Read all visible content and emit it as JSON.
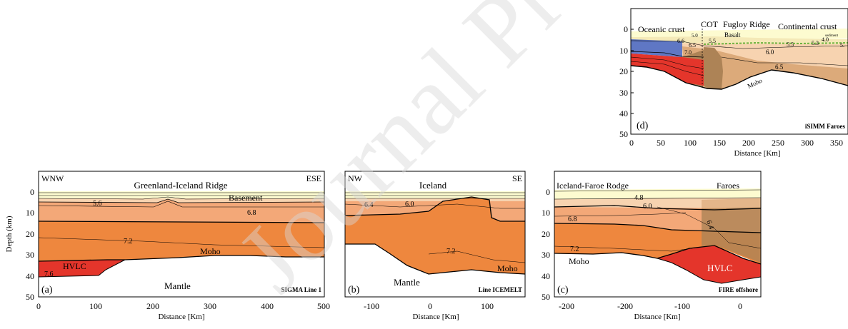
{
  "watermark": "Journal Pre-proof",
  "colors": {
    "cream": "#fdfbd0",
    "sediment": "#f4e9b7",
    "tan_light": "#f7d3b0",
    "salmon": "#f3a878",
    "orange": "#ee873e",
    "red": "#e4352b",
    "brown": "#ad8356",
    "blue": "#5f77c4",
    "watermark": "#dcdcdc",
    "green_line": "#6db33f"
  },
  "panels": [
    {
      "id": "a",
      "ylabel": "Depth (km)",
      "xlabel": "Distance [Km]",
      "xticks": [
        "0",
        "100",
        "200",
        "300",
        "400",
        "500"
      ],
      "yticks": [
        "0",
        "10",
        "20",
        "30",
        "40",
        "50"
      ],
      "corner_left": "WNW",
      "corner_right": "ESE",
      "top_title": "Greenland-Iceland Ridge",
      "labels": {
        "basement": "Basement",
        "v56": "5.6",
        "v68": "6.8",
        "v72": "7.2",
        "moho": "Moho",
        "hvlc": "HVLC",
        "v76": "7.6",
        "mantle": "Mantle"
      },
      "panel_letter": "(a)",
      "line_name": "SIGMA Line 1"
    },
    {
      "id": "b",
      "xlabel": "Distance [Km]",
      "xticks": [
        "-100",
        "0",
        "100"
      ],
      "corner_left": "NW",
      "corner_right": "SE",
      "top_title": "Iceland",
      "labels": {
        "v64": "6.4",
        "v60": "6.0",
        "v72": "7.2",
        "moho": "Moho",
        "mantle": "Mantle"
      },
      "panel_letter": "(b)",
      "line_name": "Line ICEMELT"
    },
    {
      "id": "c",
      "xlabel": "Distance [Km]",
      "xticks": [
        "-200",
        "-200",
        "-100",
        "0"
      ],
      "yticks": [
        "0",
        "10",
        "20",
        "30",
        "40",
        "50"
      ],
      "corner_left": "Iceland-Faroe Rodge",
      "corner_right": "Faroes",
      "labels": {
        "v48": "4.8",
        "v60": "6.0",
        "v68": "6.8",
        "v64": "6.4",
        "v72": "7.2",
        "moho": "Moho",
        "hvlc": "HVLC"
      },
      "panel_letter": "(c)",
      "line_name": "FIRE offshore"
    },
    {
      "id": "d",
      "xlabel": "Distance [Km]",
      "xticks": [
        "0",
        "50",
        "100",
        "150",
        "200",
        "250",
        "300",
        "350"
      ],
      "yticks": [
        "0",
        "10",
        "20",
        "30",
        "40",
        "50"
      ],
      "labels": {
        "oceanic": "Oceanic crust",
        "cot": "COT",
        "fugloy": "Fugloy Ridge",
        "continental": "Continental crust",
        "basalt": "Basalt",
        "sediment": "sediment",
        "v50": "5.0",
        "v66": "6.6",
        "v65": "6.5",
        "v55a": "5.5",
        "v70": "7.0",
        "v55b": "5.5",
        "v60": "6.0",
        "v65b": "6.5",
        "v53": "5.3",
        "v40": "4.0",
        "v5x": "5.",
        "moho": "Moho"
      },
      "panel_letter": "(d)",
      "line_name": "iSIMM Faroes"
    }
  ]
}
